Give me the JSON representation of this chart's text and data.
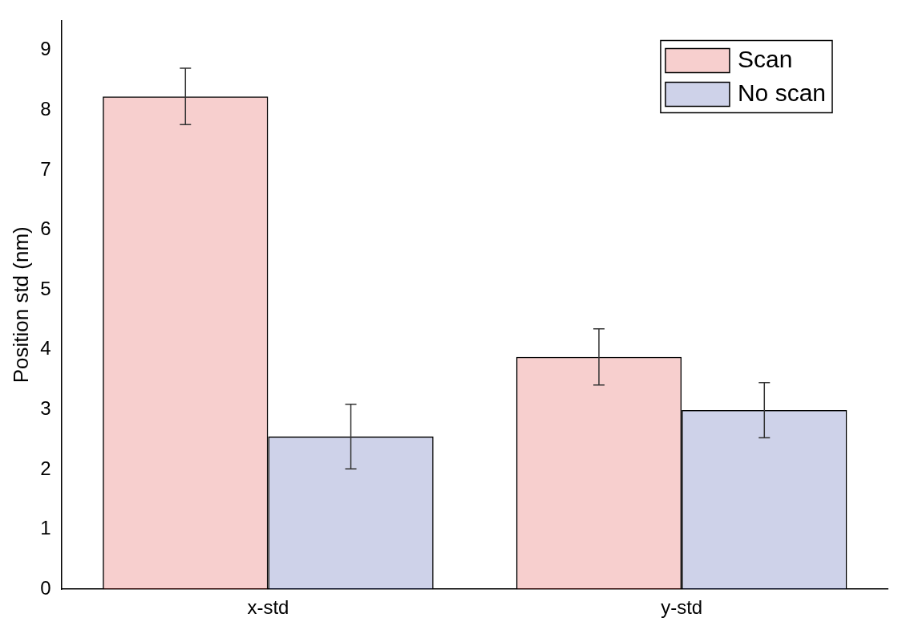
{
  "chart_data": {
    "type": "bar",
    "ylabel": "Position std (nm)",
    "categories": [
      "x-std",
      "y-std"
    ],
    "series": [
      {
        "name": "Scan",
        "color": "#e0403a",
        "values": [
          8.23,
          3.88
        ],
        "errors": [
          0.47,
          0.47
        ]
      },
      {
        "name": "No scan",
        "color": "#3a4ca8",
        "values": [
          2.55,
          2.99
        ],
        "errors": [
          0.54,
          0.46
        ]
      }
    ],
    "ylim": [
      0,
      9.5
    ],
    "yticks": [
      0,
      1,
      2,
      3,
      4,
      5,
      6,
      7,
      8,
      9
    ],
    "grid": false,
    "legend": "top right"
  }
}
